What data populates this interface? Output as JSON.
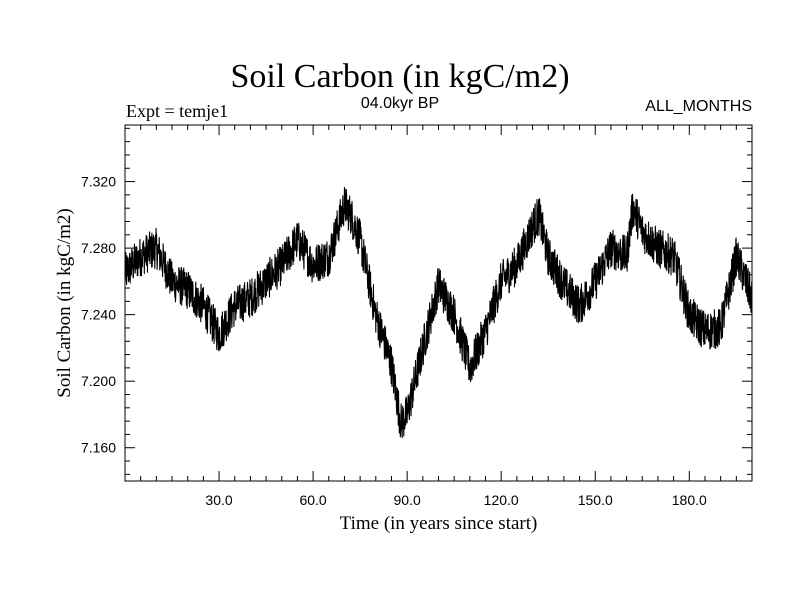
{
  "chart_data": {
    "type": "line",
    "title": "Soil Carbon (in kgC/m2)",
    "subtitle_left": "Expt = temje1",
    "subtitle_center": "04.0kyr BP",
    "subtitle_right": "ALL_MONTHS",
    "xlabel": "Time (in years since start)",
    "ylabel": "Soil Carbon (in kgC/m2)",
    "xlim": [
      0,
      200
    ],
    "ylim": [
      7.14,
      7.354
    ],
    "xticks": [
      30,
      60,
      90,
      120,
      150,
      180
    ],
    "xtick_labels": [
      "30.0",
      "60.0",
      "90.0",
      "120.0",
      "150.0",
      "180.0"
    ],
    "yticks": [
      7.16,
      7.2,
      7.24,
      7.28,
      7.32
    ],
    "ytick_labels": [
      "7.160",
      "7.200",
      "7.240",
      "7.280",
      "7.320"
    ],
    "grid": false,
    "line_color": "#000000",
    "series": [
      {
        "name": "Soil Carbon",
        "x": [
          0,
          5,
          10,
          15,
          20,
          25,
          30,
          35,
          40,
          45,
          50,
          55,
          60,
          65,
          70,
          72,
          75,
          80,
          85,
          88,
          90,
          95,
          100,
          105,
          110,
          115,
          120,
          125,
          130,
          132,
          135,
          140,
          145,
          150,
          155,
          160,
          162,
          165,
          170,
          175,
          180,
          185,
          190,
          195,
          200
        ],
        "values": [
          7.265,
          7.275,
          7.28,
          7.26,
          7.255,
          7.245,
          7.228,
          7.245,
          7.25,
          7.26,
          7.27,
          7.285,
          7.27,
          7.275,
          7.306,
          7.3,
          7.285,
          7.24,
          7.21,
          7.175,
          7.18,
          7.22,
          7.258,
          7.24,
          7.208,
          7.23,
          7.26,
          7.27,
          7.293,
          7.3,
          7.275,
          7.258,
          7.245,
          7.26,
          7.28,
          7.275,
          7.305,
          7.29,
          7.28,
          7.275,
          7.24,
          7.23,
          7.232,
          7.275,
          7.25
        ],
        "noise_amplitude": 0.012
      }
    ]
  }
}
